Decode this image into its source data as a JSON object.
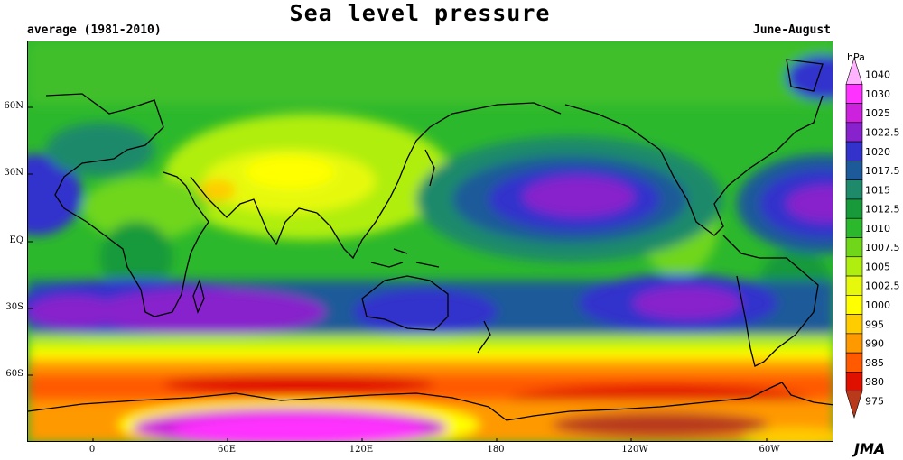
{
  "title": "Sea level pressure",
  "subtitle_left": "average (1981-2010)",
  "subtitle_right": "June-August",
  "legend": {
    "unit": "hPa",
    "levels": [
      {
        "label": "1040",
        "color": "#ffb3ff"
      },
      {
        "label": "1030",
        "color": "#ff33ff"
      },
      {
        "label": "1025",
        "color": "#cc22dd"
      },
      {
        "label": "1022.5",
        "color": "#8822cc"
      },
      {
        "label": "1020",
        "color": "#3333cc"
      },
      {
        "label": "1017.5",
        "color": "#1c5a99"
      },
      {
        "label": "1015",
        "color": "#1e8a6a"
      },
      {
        "label": "1012.5",
        "color": "#199a3a"
      },
      {
        "label": "1010",
        "color": "#2cb82c"
      },
      {
        "label": "1007.5",
        "color": "#6fd61a"
      },
      {
        "label": "1005",
        "color": "#b0ee10"
      },
      {
        "label": "1002.5",
        "color": "#e6f90d"
      },
      {
        "label": "1000",
        "color": "#ffff00"
      },
      {
        "label": "995",
        "color": "#ffcc00"
      },
      {
        "label": "990",
        "color": "#ff9900"
      },
      {
        "label": "985",
        "color": "#ff5a00"
      },
      {
        "label": "980",
        "color": "#e01000"
      },
      {
        "label": "975",
        "color": "#b83a1a"
      }
    ]
  },
  "lat_labels": [
    {
      "text": "60N",
      "lat": 60
    },
    {
      "text": "30N",
      "lat": 30
    },
    {
      "text": "EQ",
      "lat": 0
    },
    {
      "text": "30S",
      "lat": -30
    },
    {
      "text": "60S",
      "lat": -60
    }
  ],
  "lon_labels": [
    {
      "text": "0",
      "lon": 0
    },
    {
      "text": "60E",
      "lon": 60
    },
    {
      "text": "120E",
      "lon": 120
    },
    {
      "text": "180",
      "lon": 180
    },
    {
      "text": "120W",
      "lon": 240
    },
    {
      "text": "60W",
      "lon": 300
    }
  ],
  "credit": "JMA"
}
